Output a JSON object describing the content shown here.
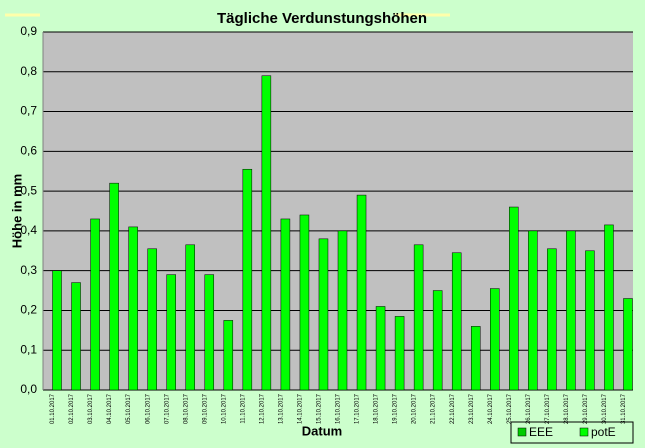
{
  "chart_data": {
    "type": "bar",
    "title": "Tägliche Verdunstungshöhen",
    "x_label": "Datum",
    "y_label": "Höhe in mm",
    "categories": [
      "01.10.2017",
      "02.10.2017",
      "03.10.2017",
      "04.10.2017",
      "05.10.2017",
      "06.10.2017",
      "07.10.2017",
      "08.10.2017",
      "09.10.2017",
      "10.10.2017",
      "11.10.2017",
      "12.10.2017",
      "13.10.2017",
      "14.10.2017",
      "15.10.2017",
      "16.10.2017",
      "17.10.2017",
      "18.10.2017",
      "19.10.2017",
      "20.10.2017",
      "21.10.2017",
      "22.10.2017",
      "23.10.2017",
      "24.10.2017",
      "25.10.2017",
      "26.10.2017",
      "27.10.2017",
      "28.10.2017",
      "29.10.2017",
      "30.10.2017",
      "31.10.2017"
    ],
    "series": [
      {
        "name": "EEE",
        "color": "#00cc00",
        "values": [
          null,
          null,
          null,
          null,
          null,
          null,
          null,
          null,
          null,
          null,
          null,
          null,
          null,
          null,
          null,
          null,
          null,
          null,
          null,
          null,
          null,
          null,
          null,
          null,
          null,
          null,
          null,
          null,
          null,
          null,
          null
        ]
      },
      {
        "name": "potE",
        "color": "#00ff00",
        "values": [
          0.3,
          0.27,
          0.43,
          0.52,
          0.41,
          0.355,
          0.29,
          0.365,
          0.29,
          0.175,
          0.555,
          0.79,
          0.43,
          0.44,
          0.38,
          0.4,
          0.49,
          0.21,
          0.185,
          0.365,
          0.25,
          0.345,
          0.16,
          0.255,
          0.46,
          0.4,
          0.355,
          0.4,
          0.35,
          0.415,
          0.23
        ]
      }
    ],
    "ylim": [
      0,
      0.9
    ],
    "yticks": [
      {
        "value": 0,
        "label": "0,0"
      },
      {
        "value": 0.1,
        "label": "0,1"
      },
      {
        "value": 0.2,
        "label": "0,2"
      },
      {
        "value": 0.3,
        "label": "0,3"
      },
      {
        "value": 0.4,
        "label": "0,4"
      },
      {
        "value": 0.5,
        "label": "0,5"
      },
      {
        "value": 0.6,
        "label": "0,6"
      },
      {
        "value": 0.7,
        "label": "0,7"
      },
      {
        "value": 0.8,
        "label": "0,8"
      },
      {
        "value": 0.9,
        "label": "0,9"
      }
    ],
    "grid": true,
    "legend": "bottom-right"
  }
}
